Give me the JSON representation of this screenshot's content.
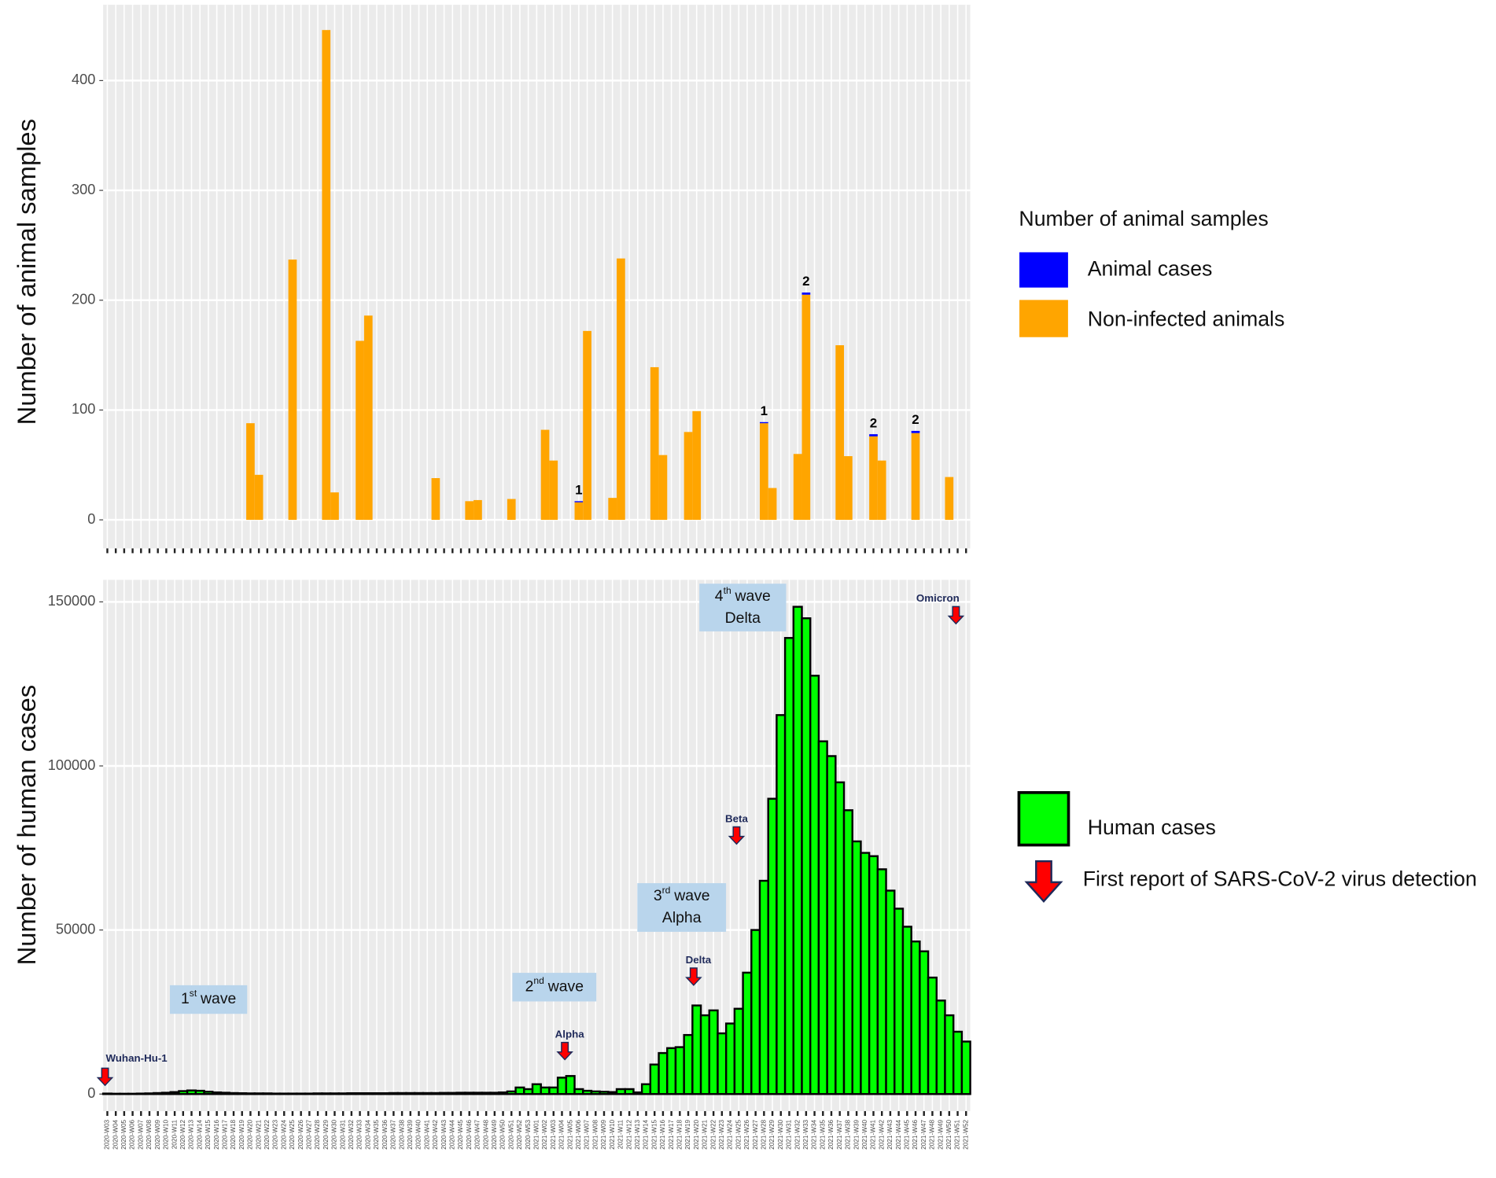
{
  "chart_data": [
    {
      "type": "bar",
      "stacked": true,
      "grid": true,
      "y_label": "Number of animal samples",
      "legend_title": "Number of animal samples",
      "ylim": [
        -26,
        469
      ],
      "yticks": [
        0,
        100,
        200,
        300,
        400
      ],
      "series": [
        {
          "name": "Animal cases",
          "color": "#0000ff",
          "values": [
            0,
            0,
            0,
            0,
            0,
            0,
            0,
            0,
            0,
            0,
            0,
            0,
            0,
            0,
            0,
            0,
            0,
            0,
            0,
            0,
            0,
            0,
            0,
            0,
            0,
            0,
            0,
            0,
            0,
            0,
            0,
            0,
            0,
            0,
            0,
            0,
            0,
            0,
            0,
            0,
            0,
            0,
            0,
            0,
            0,
            0,
            0,
            0,
            0,
            0,
            0,
            0,
            0,
            0,
            0,
            0,
            1,
            0,
            0,
            0,
            0,
            0,
            0,
            0,
            0,
            0,
            0,
            0,
            0,
            0,
            0,
            0,
            0,
            0,
            0,
            0,
            0,
            0,
            1,
            0,
            0,
            0,
            0,
            2,
            0,
            0,
            0,
            0,
            0,
            0,
            0,
            2,
            0,
            0,
            0,
            0,
            2,
            0,
            0,
            0,
            0,
            0,
            0
          ]
        },
        {
          "name": "Non-infected animals",
          "color": "#ffa500",
          "values": [
            0,
            0,
            0,
            0,
            0,
            0,
            0,
            0,
            0,
            0,
            0,
            0,
            0,
            0,
            0,
            0,
            0,
            88,
            41,
            0,
            0,
            0,
            237,
            0,
            0,
            0,
            446,
            25,
            0,
            0,
            163,
            186,
            0,
            0,
            0,
            0,
            0,
            0,
            0,
            38,
            0,
            0,
            0,
            17,
            18,
            0,
            0,
            0,
            19,
            0,
            0,
            0,
            82,
            54,
            0,
            0,
            16,
            172,
            0,
            0,
            20,
            238,
            0,
            0,
            0,
            139,
            59,
            0,
            0,
            80,
            99,
            0,
            0,
            0,
            0,
            0,
            0,
            0,
            88,
            29,
            0,
            0,
            60,
            205,
            0,
            0,
            0,
            159,
            58,
            0,
            0,
            76,
            54,
            0,
            0,
            0,
            79,
            0,
            0,
            0,
            39,
            0,
            0
          ]
        }
      ]
    },
    {
      "type": "bar",
      "grid": true,
      "y_label": "Number of human cases",
      "ylim": [
        -5200,
        156700
      ],
      "yticks": [
        0,
        50000,
        100000,
        150000
      ],
      "categories": [
        "2020-W03",
        "2020-W04",
        "2020-W05",
        "2020-W06",
        "2020-W07",
        "2020-W08",
        "2020-W09",
        "2020-W10",
        "2020-W11",
        "2020-W12",
        "2020-W13",
        "2020-W14",
        "2020-W15",
        "2020-W16",
        "2020-W17",
        "2020-W18",
        "2020-W19",
        "2020-W20",
        "2020-W21",
        "2020-W22",
        "2020-W23",
        "2020-W24",
        "2020-W25",
        "2020-W26",
        "2020-W27",
        "2020-W28",
        "2020-W29",
        "2020-W30",
        "2020-W31",
        "2020-W32",
        "2020-W33",
        "2020-W34",
        "2020-W35",
        "2020-W36",
        "2020-W37",
        "2020-W38",
        "2020-W39",
        "2020-W40",
        "2020-W41",
        "2020-W42",
        "2020-W43",
        "2020-W44",
        "2020-W45",
        "2020-W46",
        "2020-W47",
        "2020-W48",
        "2020-W49",
        "2020-W50",
        "2020-W51",
        "2020-W52",
        "2020-W53",
        "2021-W01",
        "2021-W02",
        "2021-W03",
        "2021-W04",
        "2021-W05",
        "2021-W06",
        "2021-W07",
        "2021-W08",
        "2021-W09",
        "2021-W10",
        "2021-W11",
        "2021-W12",
        "2021-W13",
        "2021-W14",
        "2021-W15",
        "2021-W16",
        "2021-W17",
        "2021-W18",
        "2021-W19",
        "2021-W20",
        "2021-W21",
        "2021-W22",
        "2021-W23",
        "2021-W24",
        "2021-W25",
        "2021-W26",
        "2021-W27",
        "2021-W28",
        "2021-W29",
        "2021-W30",
        "2021-W31",
        "2021-W32",
        "2021-W33",
        "2021-W34",
        "2021-W35",
        "2021-W36",
        "2021-W37",
        "2021-W38",
        "2021-W39",
        "2021-W40",
        "2021-W41",
        "2021-W42",
        "2021-W43",
        "2021-W44",
        "2021-W45",
        "2021-W46",
        "2021-W47",
        "2021-W48",
        "2021-W49",
        "2021-W50",
        "2021-W51",
        "2021-W52"
      ],
      "series": [
        {
          "name": "Human cases",
          "color": "#00ff00",
          "values": [
            150,
            100,
            100,
            100,
            150,
            200,
            300,
            400,
            600,
            900,
            1100,
            1000,
            700,
            500,
            400,
            300,
            250,
            200,
            200,
            200,
            150,
            150,
            150,
            150,
            150,
            200,
            200,
            200,
            200,
            250,
            250,
            250,
            250,
            250,
            300,
            300,
            300,
            300,
            300,
            300,
            350,
            350,
            400,
            400,
            400,
            400,
            400,
            500,
            800,
            2000,
            1500,
            3000,
            2000,
            2000,
            5000,
            5500,
            1500,
            1000,
            800,
            700,
            600,
            1500,
            1500,
            500,
            3000,
            9000,
            12500,
            14000,
            14300,
            18000,
            27000,
            24000,
            25500,
            18500,
            21500,
            26000,
            37000,
            50000,
            65000,
            90000,
            115500,
            139000,
            148500,
            145000,
            127500,
            107500,
            103000,
            95000,
            86500,
            77000,
            73500,
            72500,
            68500,
            62000,
            56500,
            51000,
            46500,
            43500,
            35500,
            28500,
            24000,
            19000,
            16000
          ]
        }
      ],
      "waves": [
        {
          "number": "1",
          "suffix": "st",
          "text": "wave"
        },
        {
          "number": "2",
          "suffix": "nd",
          "text": "wave"
        },
        {
          "number": "3",
          "suffix": "rd",
          "text": "wave",
          "variant": "Alpha"
        },
        {
          "number": "4",
          "suffix": "th",
          "text": "wave",
          "variant": "Delta"
        }
      ],
      "variants": [
        "Wuhan-Hu-1",
        "Alpha",
        "Delta",
        "Beta",
        "Omicron"
      ],
      "variant_legend": "First report of  SARS-CoV-2 virus detection"
    }
  ]
}
